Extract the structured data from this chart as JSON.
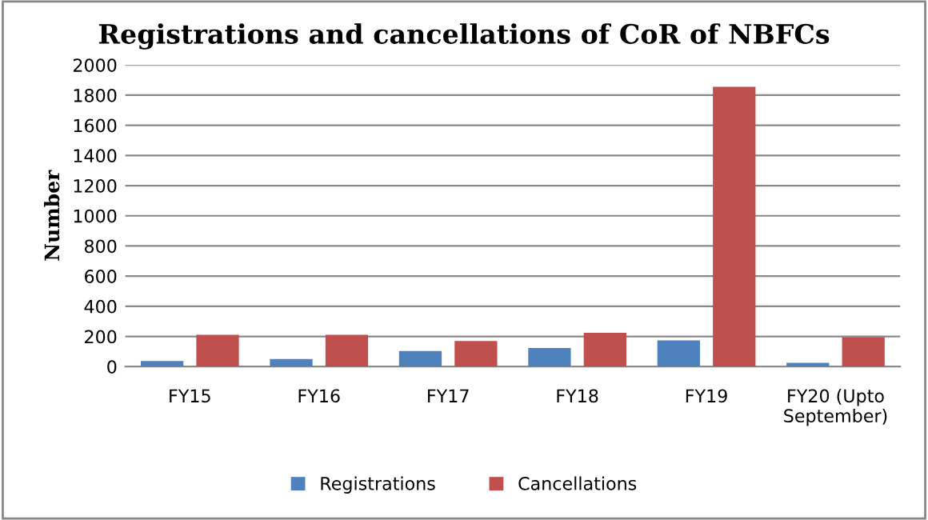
{
  "chart_data": {
    "type": "bar",
    "title": "Registrations and cancellations of CoR of NBFCs",
    "ylabel": "Number",
    "categories": [
      "FY15",
      "FY16",
      "FY17",
      "FY18",
      "FY19",
      "FY20 (Upto\nSeptember)"
    ],
    "series": [
      {
        "name": "Registrations",
        "color": "#4f81bd",
        "values": [
          37,
          50,
          104,
          124,
          174,
          25
        ]
      },
      {
        "name": "Cancellations",
        "color": "#c0504d",
        "values": [
          211,
          211,
          170,
          224,
          1855,
          195
        ]
      }
    ],
    "ylim": [
      0,
      2000
    ],
    "yticks": [
      0,
      200,
      400,
      600,
      800,
      1000,
      1200,
      1400,
      1600,
      1800,
      2000
    ],
    "grid": "y",
    "legend": "bottom"
  }
}
